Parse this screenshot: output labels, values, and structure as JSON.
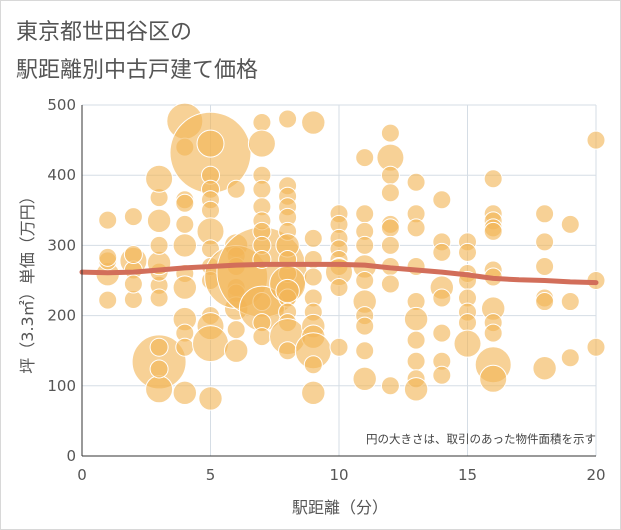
{
  "chart_data": {
    "type": "scatter",
    "title_lines": [
      "東京都世田谷区の",
      "駅距離別中古戸建て価格"
    ],
    "xlabel": "駅距離（分）",
    "ylabel": "坪（3.3㎡）単価（万円）",
    "annotation": "円の大きさは、取引のあった物件面積を示す",
    "xlim": [
      0,
      20
    ],
    "ylim": [
      0,
      500
    ],
    "x_ticks": [
      0,
      5,
      10,
      15,
      20
    ],
    "y_ticks": [
      0,
      100,
      200,
      300,
      400,
      500
    ],
    "grid": true,
    "colors": {
      "bubble": "#f2b455",
      "trend": "#d26e5a",
      "grid": "#d5dde5",
      "axis": "#333333"
    },
    "points": [
      {
        "x": 1,
        "y": 259,
        "s": 1.3
      },
      {
        "x": 1,
        "y": 278,
        "s": 1.0
      },
      {
        "x": 1,
        "y": 222,
        "s": 1.0
      },
      {
        "x": 1,
        "y": 336,
        "s": 1.0
      },
      {
        "x": 1,
        "y": 283,
        "s": 1.0
      },
      {
        "x": 2,
        "y": 278,
        "s": 1.5
      },
      {
        "x": 2,
        "y": 265,
        "s": 1.0
      },
      {
        "x": 2,
        "y": 223,
        "s": 1.0
      },
      {
        "x": 2,
        "y": 245,
        "s": 1.0
      },
      {
        "x": 2,
        "y": 341,
        "s": 1.0
      },
      {
        "x": 2,
        "y": 287,
        "s": 1.0
      },
      {
        "x": 3,
        "y": 134,
        "s": 3.0
      },
      {
        "x": 3,
        "y": 95,
        "s": 1.5
      },
      {
        "x": 3,
        "y": 155,
        "s": 1.0
      },
      {
        "x": 3,
        "y": 243,
        "s": 1.0
      },
      {
        "x": 3,
        "y": 225,
        "s": 1.0
      },
      {
        "x": 3,
        "y": 262,
        "s": 1.0
      },
      {
        "x": 3,
        "y": 275,
        "s": 1.3
      },
      {
        "x": 3,
        "y": 300,
        "s": 1.0
      },
      {
        "x": 3,
        "y": 335,
        "s": 1.3
      },
      {
        "x": 3,
        "y": 368,
        "s": 1.0
      },
      {
        "x": 3,
        "y": 395,
        "s": 1.5
      },
      {
        "x": 3,
        "y": 124,
        "s": 1.0
      },
      {
        "x": 4,
        "y": 477,
        "s": 2.0
      },
      {
        "x": 4,
        "y": 440,
        "s": 1.0
      },
      {
        "x": 4,
        "y": 365,
        "s": 1.0
      },
      {
        "x": 4,
        "y": 360,
        "s": 1.0
      },
      {
        "x": 4,
        "y": 330,
        "s": 1.0
      },
      {
        "x": 4,
        "y": 300,
        "s": 1.3
      },
      {
        "x": 4,
        "y": 260,
        "s": 1.0
      },
      {
        "x": 4,
        "y": 240,
        "s": 1.3
      },
      {
        "x": 4,
        "y": 195,
        "s": 1.3
      },
      {
        "x": 4,
        "y": 175,
        "s": 1.0
      },
      {
        "x": 4,
        "y": 155,
        "s": 1.0
      },
      {
        "x": 4,
        "y": 90,
        "s": 1.3
      },
      {
        "x": 5,
        "y": 432,
        "s": 4.5
      },
      {
        "x": 5,
        "y": 445,
        "s": 1.5
      },
      {
        "x": 5,
        "y": 400,
        "s": 1.0
      },
      {
        "x": 5,
        "y": 380,
        "s": 1.0
      },
      {
        "x": 5,
        "y": 365,
        "s": 1.0
      },
      {
        "x": 5,
        "y": 350,
        "s": 1.0
      },
      {
        "x": 5,
        "y": 320,
        "s": 1.5
      },
      {
        "x": 5,
        "y": 295,
        "s": 1.0
      },
      {
        "x": 5,
        "y": 270,
        "s": 1.0
      },
      {
        "x": 5,
        "y": 250,
        "s": 1.0
      },
      {
        "x": 5,
        "y": 200,
        "s": 1.0
      },
      {
        "x": 5,
        "y": 185,
        "s": 1.5
      },
      {
        "x": 5,
        "y": 160,
        "s": 2.0
      },
      {
        "x": 5,
        "y": 82,
        "s": 1.3
      },
      {
        "x": 6,
        "y": 380,
        "s": 1.0
      },
      {
        "x": 6,
        "y": 300,
        "s": 1.3
      },
      {
        "x": 6,
        "y": 285,
        "s": 1.0
      },
      {
        "x": 6,
        "y": 270,
        "s": 1.0
      },
      {
        "x": 6,
        "y": 240,
        "s": 1.0
      },
      {
        "x": 6,
        "y": 232,
        "s": 1.0
      },
      {
        "x": 6,
        "y": 210,
        "s": 1.3
      },
      {
        "x": 6,
        "y": 180,
        "s": 1.0
      },
      {
        "x": 6,
        "y": 150,
        "s": 1.3
      },
      {
        "x": 6,
        "y": 255,
        "s": 3.5
      },
      {
        "x": 7,
        "y": 262,
        "s": 5.0
      },
      {
        "x": 7,
        "y": 475,
        "s": 1.0
      },
      {
        "x": 7,
        "y": 445,
        "s": 1.5
      },
      {
        "x": 7,
        "y": 400,
        "s": 1.0
      },
      {
        "x": 7,
        "y": 380,
        "s": 1.0
      },
      {
        "x": 7,
        "y": 355,
        "s": 1.0
      },
      {
        "x": 7,
        "y": 335,
        "s": 1.0
      },
      {
        "x": 7,
        "y": 320,
        "s": 1.0
      },
      {
        "x": 7,
        "y": 300,
        "s": 1.0
      },
      {
        "x": 7,
        "y": 280,
        "s": 1.0
      },
      {
        "x": 7,
        "y": 220,
        "s": 1.0
      },
      {
        "x": 7,
        "y": 210,
        "s": 2.5
      },
      {
        "x": 7,
        "y": 190,
        "s": 1.0
      },
      {
        "x": 7,
        "y": 170,
        "s": 1.0
      },
      {
        "x": 8,
        "y": 480,
        "s": 1.0
      },
      {
        "x": 8,
        "y": 385,
        "s": 1.0
      },
      {
        "x": 8,
        "y": 370,
        "s": 1.0
      },
      {
        "x": 8,
        "y": 355,
        "s": 1.0
      },
      {
        "x": 8,
        "y": 340,
        "s": 1.0
      },
      {
        "x": 8,
        "y": 320,
        "s": 1.0
      },
      {
        "x": 8,
        "y": 300,
        "s": 1.3
      },
      {
        "x": 8,
        "y": 280,
        "s": 1.0
      },
      {
        "x": 8,
        "y": 260,
        "s": 1.0
      },
      {
        "x": 8,
        "y": 245,
        "s": 2.0
      },
      {
        "x": 8,
        "y": 225,
        "s": 1.0
      },
      {
        "x": 8,
        "y": 205,
        "s": 1.0
      },
      {
        "x": 8,
        "y": 190,
        "s": 1.0
      },
      {
        "x": 8,
        "y": 170,
        "s": 2.0
      },
      {
        "x": 8,
        "y": 150,
        "s": 1.0
      },
      {
        "x": 8,
        "y": 235,
        "s": 1.3
      },
      {
        "x": 9,
        "y": 475,
        "s": 1.3
      },
      {
        "x": 9,
        "y": 310,
        "s": 1.0
      },
      {
        "x": 9,
        "y": 280,
        "s": 1.0
      },
      {
        "x": 9,
        "y": 255,
        "s": 1.0
      },
      {
        "x": 9,
        "y": 225,
        "s": 1.0
      },
      {
        "x": 9,
        "y": 205,
        "s": 1.0
      },
      {
        "x": 9,
        "y": 185,
        "s": 1.3
      },
      {
        "x": 9,
        "y": 170,
        "s": 1.3
      },
      {
        "x": 9,
        "y": 150,
        "s": 2.0
      },
      {
        "x": 9,
        "y": 130,
        "s": 1.0
      },
      {
        "x": 9,
        "y": 90,
        "s": 1.3
      },
      {
        "x": 10,
        "y": 345,
        "s": 1.0
      },
      {
        "x": 10,
        "y": 330,
        "s": 1.0
      },
      {
        "x": 10,
        "y": 310,
        "s": 1.0
      },
      {
        "x": 10,
        "y": 295,
        "s": 1.0
      },
      {
        "x": 10,
        "y": 280,
        "s": 1.0
      },
      {
        "x": 10,
        "y": 270,
        "s": 1.0
      },
      {
        "x": 10,
        "y": 262,
        "s": 1.5
      },
      {
        "x": 10,
        "y": 240,
        "s": 1.0
      },
      {
        "x": 10,
        "y": 155,
        "s": 1.0
      },
      {
        "x": 11,
        "y": 425,
        "s": 1.0
      },
      {
        "x": 11,
        "y": 345,
        "s": 1.0
      },
      {
        "x": 11,
        "y": 320,
        "s": 1.0
      },
      {
        "x": 11,
        "y": 300,
        "s": 1.0
      },
      {
        "x": 11,
        "y": 270,
        "s": 1.3
      },
      {
        "x": 11,
        "y": 250,
        "s": 1.0
      },
      {
        "x": 11,
        "y": 220,
        "s": 1.3
      },
      {
        "x": 11,
        "y": 200,
        "s": 1.0
      },
      {
        "x": 11,
        "y": 185,
        "s": 1.0
      },
      {
        "x": 11,
        "y": 150,
        "s": 1.0
      },
      {
        "x": 11,
        "y": 110,
        "s": 1.3
      },
      {
        "x": 12,
        "y": 460,
        "s": 1.0
      },
      {
        "x": 12,
        "y": 425,
        "s": 1.5
      },
      {
        "x": 12,
        "y": 400,
        "s": 1.0
      },
      {
        "x": 12,
        "y": 375,
        "s": 1.0
      },
      {
        "x": 12,
        "y": 330,
        "s": 1.0
      },
      {
        "x": 12,
        "y": 325,
        "s": 1.0
      },
      {
        "x": 12,
        "y": 300,
        "s": 1.0
      },
      {
        "x": 12,
        "y": 270,
        "s": 1.0
      },
      {
        "x": 12,
        "y": 245,
        "s": 1.0
      },
      {
        "x": 12,
        "y": 100,
        "s": 1.0
      },
      {
        "x": 13,
        "y": 390,
        "s": 1.0
      },
      {
        "x": 13,
        "y": 345,
        "s": 1.0
      },
      {
        "x": 13,
        "y": 325,
        "s": 1.0
      },
      {
        "x": 13,
        "y": 270,
        "s": 1.0
      },
      {
        "x": 13,
        "y": 220,
        "s": 1.0
      },
      {
        "x": 13,
        "y": 195,
        "s": 1.3
      },
      {
        "x": 13,
        "y": 165,
        "s": 1.0
      },
      {
        "x": 13,
        "y": 135,
        "s": 1.0
      },
      {
        "x": 13,
        "y": 110,
        "s": 1.0
      },
      {
        "x": 13,
        "y": 95,
        "s": 1.3
      },
      {
        "x": 14,
        "y": 365,
        "s": 1.0
      },
      {
        "x": 14,
        "y": 305,
        "s": 1.0
      },
      {
        "x": 14,
        "y": 290,
        "s": 1.0
      },
      {
        "x": 14,
        "y": 240,
        "s": 1.3
      },
      {
        "x": 14,
        "y": 225,
        "s": 1.0
      },
      {
        "x": 14,
        "y": 175,
        "s": 1.0
      },
      {
        "x": 14,
        "y": 135,
        "s": 1.0
      },
      {
        "x": 14,
        "y": 115,
        "s": 1.0
      },
      {
        "x": 15,
        "y": 305,
        "s": 1.0
      },
      {
        "x": 15,
        "y": 290,
        "s": 1.0
      },
      {
        "x": 15,
        "y": 260,
        "s": 1.0
      },
      {
        "x": 15,
        "y": 250,
        "s": 1.0
      },
      {
        "x": 15,
        "y": 225,
        "s": 1.0
      },
      {
        "x": 15,
        "y": 205,
        "s": 1.0
      },
      {
        "x": 15,
        "y": 190,
        "s": 1.0
      },
      {
        "x": 15,
        "y": 160,
        "s": 1.5
      },
      {
        "x": 16,
        "y": 395,
        "s": 1.0
      },
      {
        "x": 16,
        "y": 345,
        "s": 1.0
      },
      {
        "x": 16,
        "y": 335,
        "s": 1.0
      },
      {
        "x": 16,
        "y": 325,
        "s": 1.0
      },
      {
        "x": 16,
        "y": 320,
        "s": 1.0
      },
      {
        "x": 16,
        "y": 265,
        "s": 1.0
      },
      {
        "x": 16,
        "y": 255,
        "s": 1.0
      },
      {
        "x": 16,
        "y": 210,
        "s": 1.3
      },
      {
        "x": 16,
        "y": 190,
        "s": 1.0
      },
      {
        "x": 16,
        "y": 175,
        "s": 1.0
      },
      {
        "x": 16,
        "y": 130,
        "s": 2.0
      },
      {
        "x": 16,
        "y": 110,
        "s": 1.5
      },
      {
        "x": 18,
        "y": 345,
        "s": 1.0
      },
      {
        "x": 18,
        "y": 305,
        "s": 1.0
      },
      {
        "x": 18,
        "y": 270,
        "s": 1.0
      },
      {
        "x": 18,
        "y": 225,
        "s": 1.0
      },
      {
        "x": 18,
        "y": 220,
        "s": 1.0
      },
      {
        "x": 18,
        "y": 125,
        "s": 1.3
      },
      {
        "x": 19,
        "y": 330,
        "s": 1.0
      },
      {
        "x": 19,
        "y": 220,
        "s": 1.0
      },
      {
        "x": 19,
        "y": 140,
        "s": 1.0
      },
      {
        "x": 20,
        "y": 450,
        "s": 1.0
      },
      {
        "x": 20,
        "y": 250,
        "s": 1.0
      },
      {
        "x": 20,
        "y": 155,
        "s": 1.0
      }
    ],
    "trend": [
      {
        "x": 0,
        "y": 262
      },
      {
        "x": 1,
        "y": 261
      },
      {
        "x": 2,
        "y": 262
      },
      {
        "x": 3,
        "y": 265
      },
      {
        "x": 4,
        "y": 268
      },
      {
        "x": 5,
        "y": 270
      },
      {
        "x": 6,
        "y": 272
      },
      {
        "x": 7,
        "y": 273
      },
      {
        "x": 8,
        "y": 273
      },
      {
        "x": 9,
        "y": 273
      },
      {
        "x": 10,
        "y": 273
      },
      {
        "x": 11,
        "y": 272
      },
      {
        "x": 12,
        "y": 268
      },
      {
        "x": 13,
        "y": 265
      },
      {
        "x": 14,
        "y": 262
      },
      {
        "x": 15,
        "y": 258
      },
      {
        "x": 16,
        "y": 253
      },
      {
        "x": 17,
        "y": 251
      },
      {
        "x": 18,
        "y": 250
      },
      {
        "x": 19,
        "y": 248
      },
      {
        "x": 20,
        "y": 247
      }
    ]
  }
}
